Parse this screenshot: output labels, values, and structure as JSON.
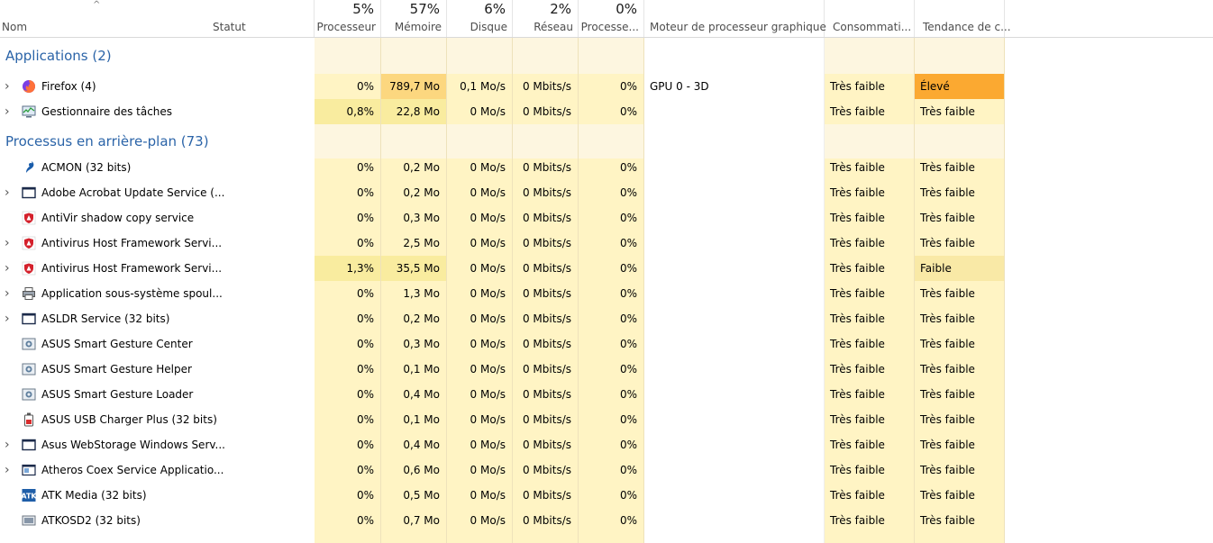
{
  "header": {
    "name_label": "Nom",
    "status_label": "Statut",
    "cpu_pct": "5%",
    "cpu_label": "Processeur",
    "mem_pct": "57%",
    "mem_label": "Mémoire",
    "disk_pct": "6%",
    "disk_label": "Disque",
    "net_pct": "2%",
    "net_label": "Réseau",
    "gpu_pct": "0%",
    "gpu_label": "Processe...",
    "gpu_engine_label": "Moteur de processeur graphique",
    "power_label": "Consommati...",
    "power_trend_label": "Tendance de c..."
  },
  "groups": {
    "apps": "Applications (2)",
    "background": "Processus en arrière-plan (73)"
  },
  "apps": [
    {
      "name": "Firefox (4)",
      "icon": "firefox-icon",
      "expandable": true,
      "cpu": "0%",
      "mem": "789,7 Mo",
      "disk": "0,1 Mo/s",
      "net": "0 Mbits/s",
      "gpu": "0%",
      "engine": "GPU 0 - 3D",
      "power": "Très faible",
      "trend": "Élevé"
    },
    {
      "name": "Gestionnaire des tâches",
      "icon": "task-manager-icon",
      "expandable": true,
      "cpu": "0,8%",
      "mem": "22,8 Mo",
      "disk": "0 Mo/s",
      "net": "0 Mbits/s",
      "gpu": "0%",
      "engine": "",
      "power": "Très faible",
      "trend": "Très faible"
    }
  ],
  "background": [
    {
      "name": "ACMON (32 bits)",
      "icon": "acmon-icon",
      "expandable": false,
      "cpu": "0%",
      "mem": "0,2 Mo",
      "disk": "0 Mo/s",
      "net": "0 Mbits/s",
      "gpu": "0%",
      "power": "Très faible",
      "trend": "Très faible"
    },
    {
      "name": "Adobe Acrobat Update Service (...",
      "icon": "window-icon",
      "expandable": true,
      "cpu": "0%",
      "mem": "0,2 Mo",
      "disk": "0 Mo/s",
      "net": "0 Mbits/s",
      "gpu": "0%",
      "power": "Très faible",
      "trend": "Très faible"
    },
    {
      "name": "AntiVir shadow copy service",
      "icon": "avira-shield-icon",
      "expandable": false,
      "cpu": "0%",
      "mem": "0,3 Mo",
      "disk": "0 Mo/s",
      "net": "0 Mbits/s",
      "gpu": "0%",
      "power": "Très faible",
      "trend": "Très faible"
    },
    {
      "name": "Antivirus Host Framework Servi...",
      "icon": "avira-shield-icon",
      "expandable": true,
      "cpu": "0%",
      "mem": "2,5 Mo",
      "disk": "0 Mo/s",
      "net": "0 Mbits/s",
      "gpu": "0%",
      "power": "Très faible",
      "trend": "Très faible"
    },
    {
      "name": "Antivirus Host Framework Servi...",
      "icon": "avira-shield-icon",
      "expandable": true,
      "cpu": "1,3%",
      "mem": "35,5 Mo",
      "disk": "0 Mo/s",
      "net": "0 Mbits/s",
      "gpu": "0%",
      "power": "Très faible",
      "trend": "Faible"
    },
    {
      "name": "Application sous-système spoul...",
      "icon": "printer-icon",
      "expandable": true,
      "cpu": "0%",
      "mem": "1,3 Mo",
      "disk": "0 Mo/s",
      "net": "0 Mbits/s",
      "gpu": "0%",
      "power": "Très faible",
      "trend": "Très faible"
    },
    {
      "name": "ASLDR Service (32 bits)",
      "icon": "window-icon",
      "expandable": true,
      "cpu": "0%",
      "mem": "0,2 Mo",
      "disk": "0 Mo/s",
      "net": "0 Mbits/s",
      "gpu": "0%",
      "power": "Très faible",
      "trend": "Très faible"
    },
    {
      "name": "ASUS Smart Gesture Center",
      "icon": "asus-app-icon",
      "expandable": false,
      "cpu": "0%",
      "mem": "0,3 Mo",
      "disk": "0 Mo/s",
      "net": "0 Mbits/s",
      "gpu": "0%",
      "power": "Très faible",
      "trend": "Très faible"
    },
    {
      "name": "ASUS Smart Gesture Helper",
      "icon": "asus-app-icon",
      "expandable": false,
      "cpu": "0%",
      "mem": "0,1 Mo",
      "disk": "0 Mo/s",
      "net": "0 Mbits/s",
      "gpu": "0%",
      "power": "Très faible",
      "trend": "Très faible"
    },
    {
      "name": "ASUS Smart Gesture Loader",
      "icon": "asus-app-icon",
      "expandable": false,
      "cpu": "0%",
      "mem": "0,4 Mo",
      "disk": "0 Mo/s",
      "net": "0 Mbits/s",
      "gpu": "0%",
      "power": "Très faible",
      "trend": "Très faible"
    },
    {
      "name": "ASUS USB Charger Plus (32 bits)",
      "icon": "usb-charger-icon",
      "expandable": false,
      "cpu": "0%",
      "mem": "0,1 Mo",
      "disk": "0 Mo/s",
      "net": "0 Mbits/s",
      "gpu": "0%",
      "power": "Très faible",
      "trend": "Très faible"
    },
    {
      "name": "Asus WebStorage Windows Serv...",
      "icon": "window-icon",
      "expandable": true,
      "cpu": "0%",
      "mem": "0,4 Mo",
      "disk": "0 Mo/s",
      "net": "0 Mbits/s",
      "gpu": "0%",
      "power": "Très faible",
      "trend": "Très faible"
    },
    {
      "name": "Atheros Coex Service Applicatio...",
      "icon": "window-app-icon",
      "expandable": true,
      "cpu": "0%",
      "mem": "0,6 Mo",
      "disk": "0 Mo/s",
      "net": "0 Mbits/s",
      "gpu": "0%",
      "power": "Très faible",
      "trend": "Très faible"
    },
    {
      "name": "ATK Media (32 bits)",
      "icon": "atk-media-icon",
      "expandable": false,
      "cpu": "0%",
      "mem": "0,5 Mo",
      "disk": "0 Mo/s",
      "net": "0 Mbits/s",
      "gpu": "0%",
      "power": "Très faible",
      "trend": "Très faible"
    },
    {
      "name": "ATKOSD2 (32 bits)",
      "icon": "atkosd-icon",
      "expandable": false,
      "cpu": "0%",
      "mem": "0,7 Mo",
      "disk": "0 Mo/s",
      "net": "0 Mbits/s",
      "gpu": "0%",
      "power": "Très faible",
      "trend": "Très faible"
    }
  ],
  "colors": {
    "heat_low": "#fff4c4",
    "heat_group": "#fdf6e0",
    "heat_med": "#f9ec9f",
    "heat_high_mem": "#fcd77f",
    "heat_trend_high": "#fba931",
    "heat_trend_low": "#f9e9a6",
    "group_title": "#2b64a8"
  }
}
